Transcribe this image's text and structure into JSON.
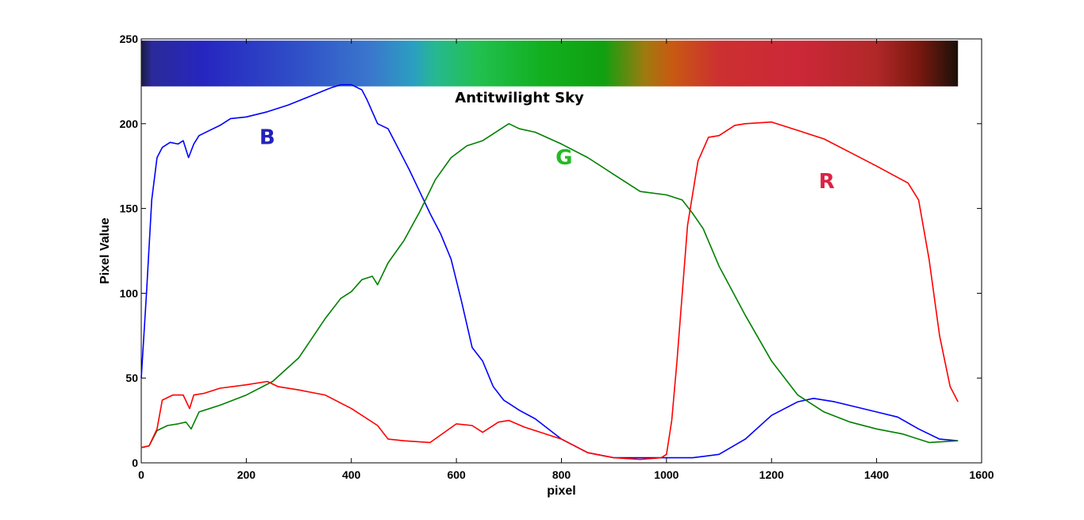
{
  "chart_data": {
    "type": "line",
    "title": "Antitwilight Sky",
    "xlabel": "pixel",
    "ylabel": "Pixel  Value",
    "xlim": [
      0,
      1600
    ],
    "ylim": [
      0,
      250
    ],
    "xticks": [
      0,
      200,
      400,
      600,
      800,
      1000,
      1200,
      1400,
      1600
    ],
    "yticks": [
      0,
      50,
      100,
      150,
      200,
      250
    ],
    "grid": false,
    "spectrum_strip": {
      "x_range": [
        0,
        1555
      ],
      "y_range": [
        222,
        249
      ],
      "stops": [
        {
          "x": 0,
          "color": "#1a1a40"
        },
        {
          "x": 20,
          "color": "#2a2a9a"
        },
        {
          "x": 120,
          "color": "#2626c0"
        },
        {
          "x": 300,
          "color": "#3050c8"
        },
        {
          "x": 440,
          "color": "#3a78cc"
        },
        {
          "x": 520,
          "color": "#2aa0c0"
        },
        {
          "x": 560,
          "color": "#26b890"
        },
        {
          "x": 640,
          "color": "#22c050"
        },
        {
          "x": 760,
          "color": "#12b020"
        },
        {
          "x": 880,
          "color": "#10a010"
        },
        {
          "x": 960,
          "color": "#a07a10"
        },
        {
          "x": 1010,
          "color": "#c85a12"
        },
        {
          "x": 1100,
          "color": "#cc3030"
        },
        {
          "x": 1250,
          "color": "#cc2838"
        },
        {
          "x": 1400,
          "color": "#b02828"
        },
        {
          "x": 1480,
          "color": "#7a1810"
        },
        {
          "x": 1555,
          "color": "#1a1008"
        }
      ]
    },
    "series": [
      {
        "color": "#0000ff",
        "x": [
          0,
          10,
          20,
          30,
          40,
          55,
          70,
          80,
          90,
          100,
          110,
          130,
          150,
          170,
          200,
          240,
          280,
          320,
          360,
          380,
          400,
          420,
          430,
          450,
          470,
          490,
          510,
          530,
          550,
          570,
          590,
          610,
          630,
          650,
          670,
          690,
          700,
          720,
          750,
          800,
          850,
          900,
          950,
          1000,
          1050,
          1100,
          1150,
          1200,
          1250,
          1280,
          1320,
          1360,
          1400,
          1440,
          1480,
          1520,
          1555
        ],
        "y": [
          50,
          100,
          155,
          180,
          186,
          189,
          188,
          190,
          180,
          188,
          193,
          196,
          199,
          203,
          204,
          207,
          211,
          216,
          221,
          223,
          223,
          220,
          214,
          200,
          197,
          185,
          173,
          160,
          147,
          135,
          120,
          95,
          68,
          60,
          45,
          37,
          35,
          31,
          26,
          14,
          6,
          3,
          3,
          3,
          3,
          5,
          14,
          28,
          36,
          38,
          36,
          33,
          30,
          27,
          20,
          14,
          13
        ]
      },
      {
        "color": "#008000",
        "x": [
          0,
          15,
          30,
          50,
          70,
          85,
          95,
          110,
          150,
          200,
          250,
          300,
          350,
          380,
          400,
          420,
          440,
          450,
          470,
          500,
          530,
          560,
          590,
          620,
          650,
          680,
          700,
          720,
          750,
          800,
          850,
          900,
          950,
          1000,
          1030,
          1050,
          1070,
          1100,
          1150,
          1200,
          1250,
          1300,
          1350,
          1400,
          1450,
          1500,
          1555
        ],
        "y": [
          9,
          10,
          19,
          22,
          23,
          24,
          20,
          30,
          34,
          40,
          48,
          62,
          85,
          97,
          101,
          108,
          110,
          105,
          118,
          131,
          148,
          167,
          180,
          187,
          190,
          196,
          200,
          197,
          195,
          188,
          180,
          170,
          160,
          158,
          155,
          147,
          138,
          116,
          87,
          60,
          40,
          30,
          24,
          20,
          17,
          12,
          13
        ]
      },
      {
        "color": "#ff0000",
        "x": [
          0,
          15,
          30,
          40,
          60,
          80,
          92,
          100,
          120,
          150,
          200,
          240,
          260,
          300,
          350,
          400,
          450,
          470,
          500,
          550,
          600,
          630,
          650,
          680,
          700,
          730,
          750,
          800,
          850,
          900,
          950,
          990,
          1000,
          1010,
          1020,
          1040,
          1060,
          1080,
          1100,
          1130,
          1150,
          1200,
          1250,
          1300,
          1350,
          1400,
          1430,
          1460,
          1480,
          1500,
          1520,
          1540,
          1555
        ],
        "y": [
          9,
          10,
          20,
          37,
          40,
          40,
          32,
          40,
          41,
          44,
          46,
          48,
          45,
          43,
          40,
          32,
          22,
          14,
          13,
          12,
          23,
          22,
          18,
          24,
          25,
          21,
          19,
          14,
          6,
          3,
          2,
          3,
          5,
          25,
          60,
          140,
          178,
          192,
          193,
          199,
          200,
          201,
          196,
          191,
          183,
          175,
          170,
          165,
          155,
          120,
          75,
          45,
          36
        ]
      }
    ],
    "annotations": [
      {
        "text": "B",
        "x": 240,
        "y": 188,
        "color": "#2222bb"
      },
      {
        "text": "G",
        "x": 805,
        "y": 176,
        "color": "#22bb22"
      },
      {
        "text": "R",
        "x": 1305,
        "y": 162,
        "color": "#dd2244"
      }
    ]
  }
}
